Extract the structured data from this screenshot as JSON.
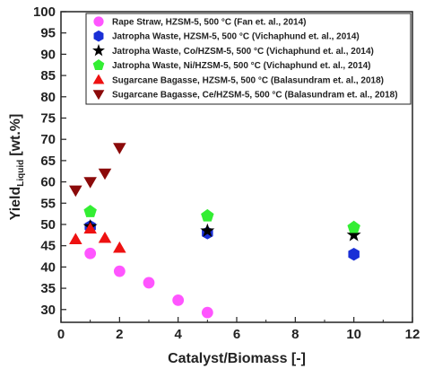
{
  "chart_data": {
    "type": "scatter",
    "xlabel": "Catalyst/Biomass [-]",
    "ylabel_main": "Yield",
    "ylabel_sub": "Liquid",
    "ylabel_unit": "[wt.%]",
    "xlim": [
      0,
      12
    ],
    "ylim": [
      27,
      100
    ],
    "xticks": [
      0,
      2,
      4,
      6,
      8,
      10,
      12
    ],
    "yticks": [
      30,
      35,
      40,
      45,
      50,
      55,
      60,
      65,
      70,
      75,
      80,
      85,
      90,
      95,
      100
    ],
    "grid": false,
    "legend_position": "top-right",
    "series": [
      {
        "name": "Rape Straw, HZSM-5, 500 °C (Fan et. al., 2014)",
        "marker": "circle",
        "color": "#ff55ff",
        "x": [
          1,
          2,
          3,
          4,
          5
        ],
        "y": [
          43.2,
          39.0,
          36.3,
          32.2,
          29.3
        ]
      },
      {
        "name": "Jatropha Waste, HZSM-5, 500 °C (Vichaphund et. al., 2014)",
        "marker": "hexagon",
        "color": "#1a2fd6",
        "x": [
          1,
          5,
          10
        ],
        "y": [
          49.5,
          48.0,
          43.0
        ]
      },
      {
        "name": "Jatropha Waste, Co/HZSM-5, 500 °C (Vichaphund et. al., 2014)",
        "marker": "star",
        "color": "#000000",
        "x": [
          1,
          5,
          10
        ],
        "y": [
          49.5,
          48.5,
          47.5
        ]
      },
      {
        "name": "Jatropha Waste, Ni/HZSM-5, 500 °C (Vichaphund et. al., 2014)",
        "marker": "pentagon",
        "color": "#33ee33",
        "x": [
          1,
          5,
          10
        ],
        "y": [
          53.0,
          52.0,
          49.3
        ]
      },
      {
        "name": "Sugarcane Bagasse, HZSM-5, 500 °C (Balasundram et. al., 2018)",
        "marker": "triangle-up",
        "color": "#ee1111",
        "x": [
          0.5,
          1,
          1.5,
          2
        ],
        "y": [
          46.5,
          49.0,
          46.8,
          44.5
        ]
      },
      {
        "name": "Sugarcane Bagasse, Ce/HZSM-5, 500 °C (Balasundram et. al., 2018)",
        "marker": "triangle-down",
        "color": "#8b0a0a",
        "x": [
          0.5,
          1,
          1.5,
          2
        ],
        "y": [
          58.0,
          60.0,
          62.0,
          68.0
        ]
      }
    ]
  }
}
